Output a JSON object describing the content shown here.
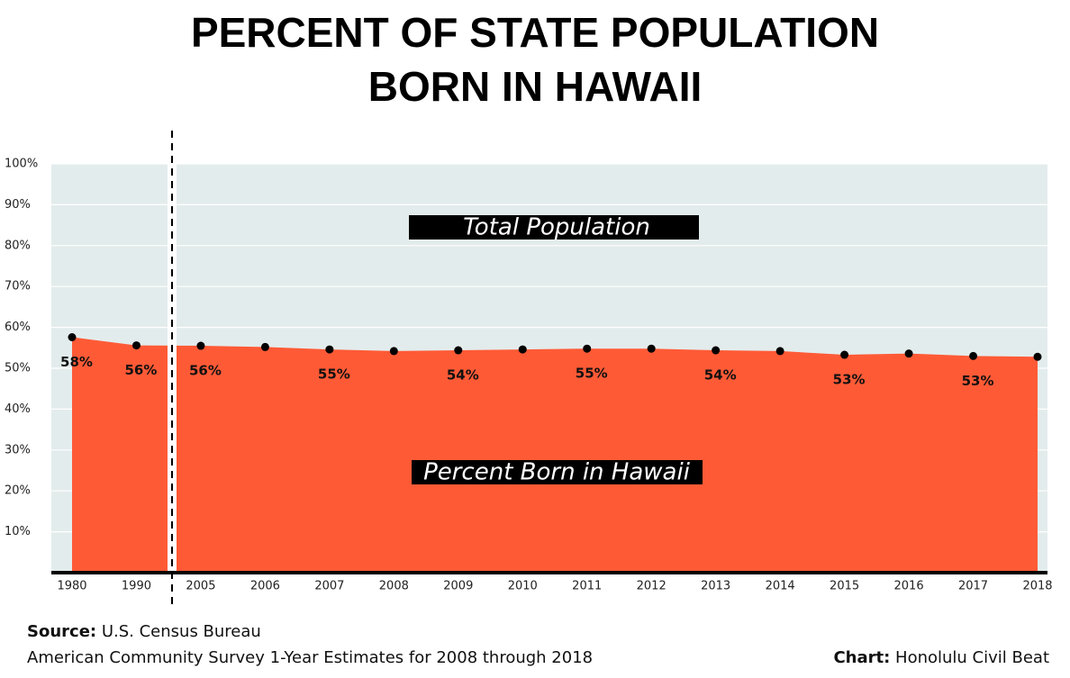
{
  "chart_data": {
    "type": "area",
    "title": [
      "PERCENT OF STATE POPULATION",
      "BORN IN HAWAII"
    ],
    "categories": [
      "1980",
      "1990",
      "2005",
      "2006",
      "2007",
      "2008",
      "2009",
      "2010",
      "2011",
      "2012",
      "2013",
      "2014",
      "2015",
      "2016",
      "2017",
      "2018"
    ],
    "series": [
      {
        "name": "Percent Born in Hawaii",
        "color": "#ff5a36",
        "values": [
          57.6,
          55.6,
          55.5,
          55.2,
          54.6,
          54.2,
          54.4,
          54.6,
          54.8,
          54.8,
          54.4,
          54.2,
          53.3,
          53.6,
          53.0,
          52.8
        ],
        "value_labels": [
          "58%",
          "56%",
          "56%",
          null,
          "55%",
          null,
          "54%",
          null,
          "55%",
          null,
          "54%",
          null,
          "53%",
          null,
          "53%",
          null
        ]
      }
    ],
    "ylim": [
      0,
      100
    ],
    "yticks": [
      {
        "value": 10,
        "label": "10%"
      },
      {
        "value": 20,
        "label": "20%"
      },
      {
        "value": 30,
        "label": "30%"
      },
      {
        "value": 40,
        "label": "40%"
      },
      {
        "value": 50,
        "label": "50%"
      },
      {
        "value": 60,
        "label": "60%"
      },
      {
        "value": 70,
        "label": "70%"
      },
      {
        "value": 80,
        "label": "80%"
      },
      {
        "value": 90,
        "label": "90%"
      },
      {
        "value": 100,
        "label": "100%"
      }
    ],
    "grid": true,
    "annotations": [
      "Total Population",
      "Percent Born in Hawaii"
    ],
    "source_label": "Source:",
    "source": "U.S. Census Bureau",
    "source_note": "American Community Survey 1-Year Estimates for 2008 through 2018",
    "credit_label": "Chart:",
    "credit": "Honolulu Civil Beat"
  }
}
